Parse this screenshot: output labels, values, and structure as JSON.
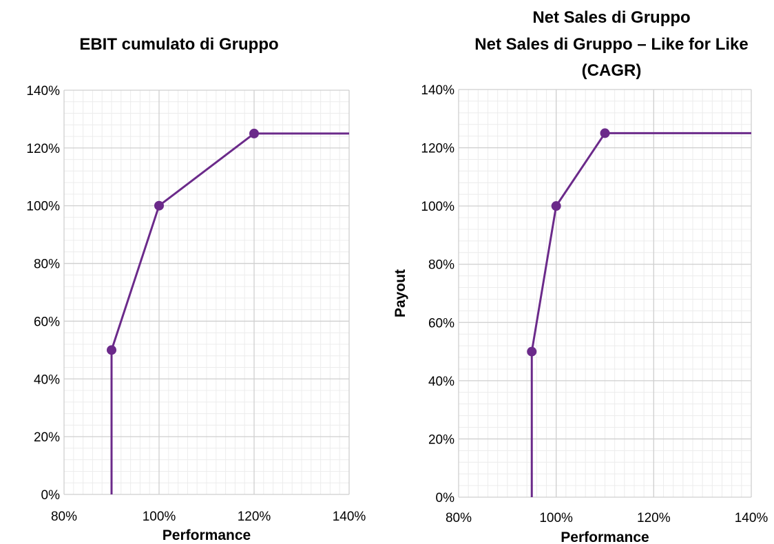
{
  "colors": {
    "series": "#6b2a8a",
    "grid_minor": "#ececec",
    "grid_major": "#cfcfcf"
  },
  "chart_data": [
    {
      "type": "line",
      "title_lines": [
        "EBIT cumulato di Gruppo"
      ],
      "xlabel": "Performance",
      "ylabel": "",
      "xlim": [
        0.8,
        1.4
      ],
      "ylim": [
        0,
        1.4
      ],
      "x_ticks": [
        "80%",
        "100%",
        "120%",
        "140%"
      ],
      "y_ticks": [
        "0%",
        "20%",
        "40%",
        "60%",
        "80%",
        "100%",
        "120%",
        "140%"
      ],
      "x_tick_values": [
        0.8,
        1.0,
        1.2,
        1.4
      ],
      "y_tick_values": [
        0,
        0.2,
        0.4,
        0.6,
        0.8,
        1.0,
        1.2,
        1.4
      ],
      "grid": true,
      "series": [
        {
          "line": [
            [
              0.9,
              0
            ],
            [
              0.9,
              0.5
            ],
            [
              1.0,
              1.0
            ],
            [
              1.2,
              1.25
            ],
            [
              1.4,
              1.25
            ]
          ],
          "markers": [
            [
              0.9,
              0.5
            ],
            [
              1.0,
              1.0
            ],
            [
              1.2,
              1.25
            ]
          ]
        }
      ]
    },
    {
      "type": "line",
      "title_lines": [
        "Net Sales di Gruppo",
        "Net Sales di Gruppo – Like for Like",
        "(CAGR)"
      ],
      "xlabel": "Performance",
      "ylabel": "Payout",
      "xlim": [
        0.8,
        1.4
      ],
      "ylim": [
        0,
        1.4
      ],
      "x_ticks": [
        "80%",
        "100%",
        "120%",
        "140%"
      ],
      "y_ticks": [
        "0%",
        "20%",
        "40%",
        "60%",
        "80%",
        "100%",
        "120%",
        "140%"
      ],
      "x_tick_values": [
        0.8,
        1.0,
        1.2,
        1.4
      ],
      "y_tick_values": [
        0,
        0.2,
        0.4,
        0.6,
        0.8,
        1.0,
        1.2,
        1.4
      ],
      "grid": true,
      "series": [
        {
          "line": [
            [
              0.95,
              0
            ],
            [
              0.95,
              0.5
            ],
            [
              1.0,
              1.0
            ],
            [
              1.1,
              1.25
            ],
            [
              1.4,
              1.25
            ]
          ],
          "markers": [
            [
              0.95,
              0.5
            ],
            [
              1.0,
              1.0
            ],
            [
              1.1,
              1.25
            ]
          ]
        }
      ]
    }
  ]
}
